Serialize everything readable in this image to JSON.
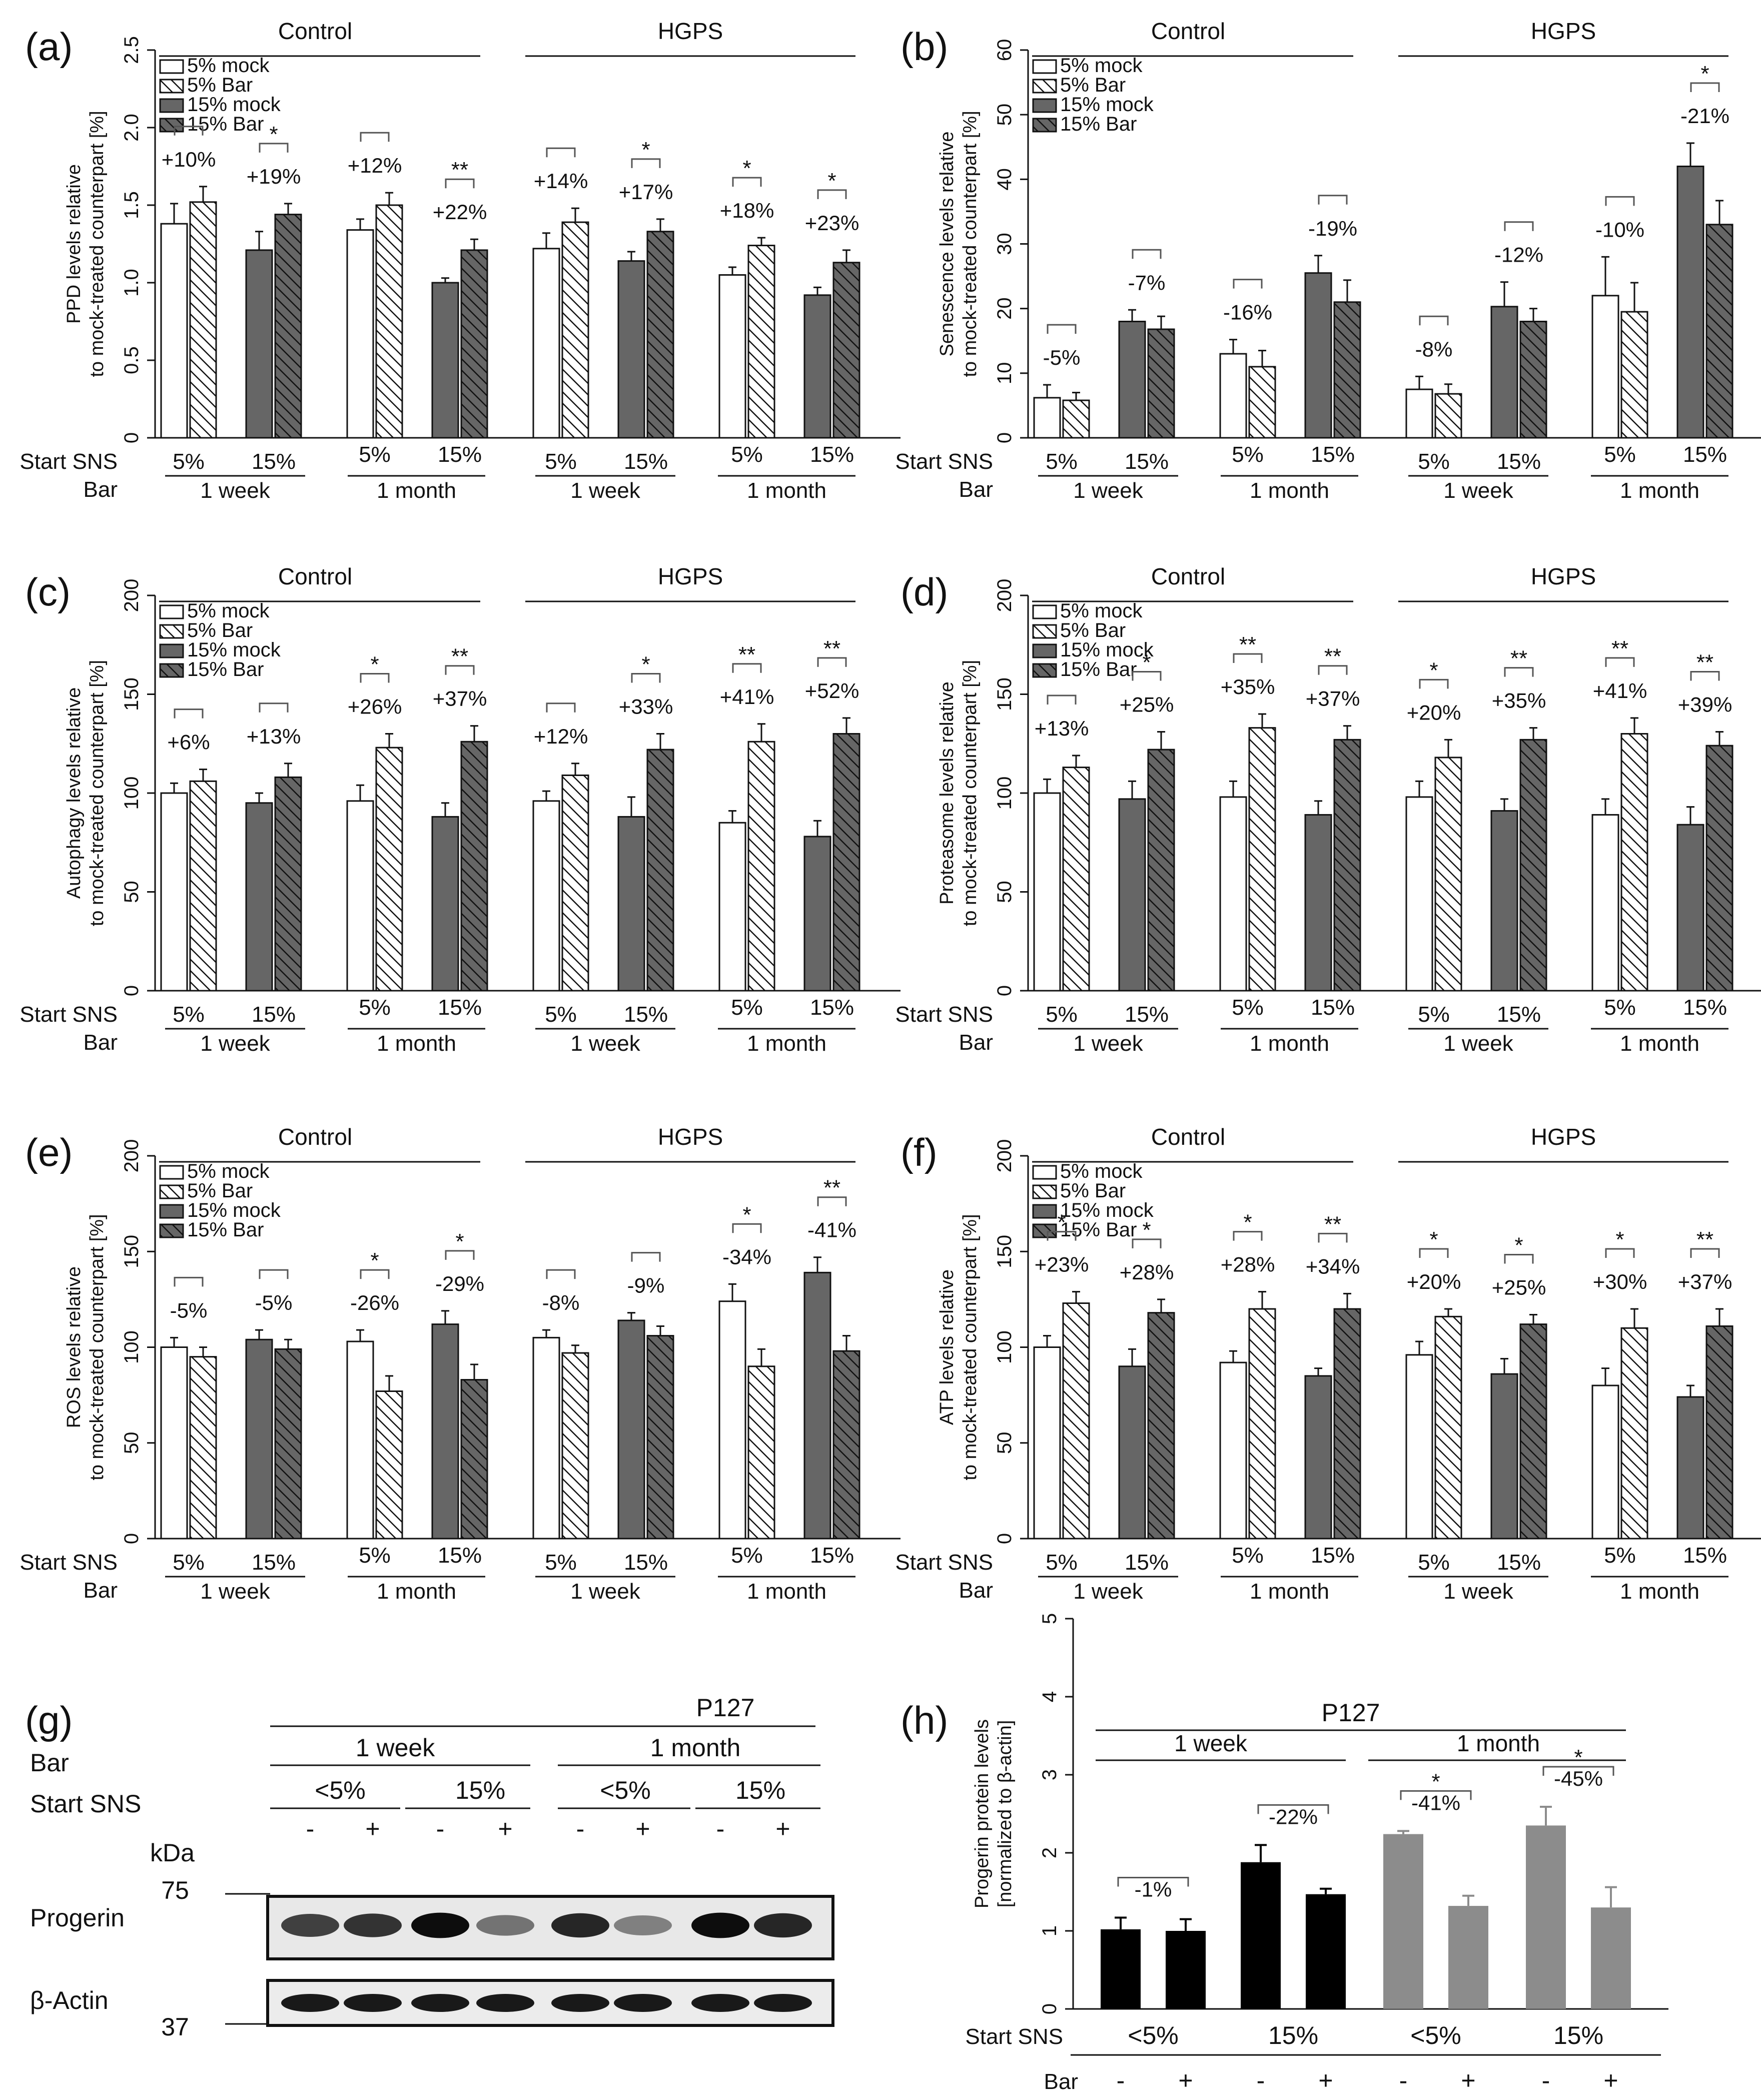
{
  "common": {
    "legend": [
      "5% mock",
      "5% Bar",
      "15% mock",
      "15% Bar"
    ],
    "group_headers": [
      "Control",
      "HGPS"
    ],
    "start_sns_label": "Start SNS",
    "bar_label": "Bar",
    "sns_ticks": [
      "5%",
      "15%",
      "5%",
      "15%",
      "5%",
      "15%",
      "5%",
      "15%"
    ],
    "duration_labels": [
      "1 week",
      "1 month",
      "1 week",
      "1 month"
    ]
  },
  "chart_data": [
    {
      "panel": "(a)",
      "type": "bar",
      "ylabel": [
        "PPD levels relative",
        "to mock-treated counterpart [%]"
      ],
      "ylim": [
        0,
        2.5
      ],
      "yticks": [
        "0",
        "0.5",
        "1.0",
        "1.5",
        "2.0",
        "2.5"
      ],
      "series": [
        "5% mock",
        "5% Bar",
        "15% mock",
        "15% Bar"
      ],
      "values": [
        [
          1.38,
          1.52
        ],
        [
          1.21,
          1.44
        ],
        [
          1.34,
          1.5
        ],
        [
          1.0,
          1.21
        ],
        [
          1.22,
          1.39
        ],
        [
          1.14,
          1.33
        ],
        [
          1.05,
          1.24
        ],
        [
          0.92,
          1.13
        ]
      ],
      "errors": [
        [
          0.13,
          0.1
        ],
        [
          0.12,
          0.07
        ],
        [
          0.07,
          0.08
        ],
        [
          0.03,
          0.07
        ],
        [
          0.1,
          0.09
        ],
        [
          0.06,
          0.08
        ],
        [
          0.05,
          0.05
        ],
        [
          0.05,
          0.08
        ]
      ],
      "annotations": [
        "+10%",
        "+19%",
        "+12%",
        "+22%",
        "+14%",
        "+17%",
        "+18%",
        "+23%"
      ],
      "stars": [
        "",
        "*",
        "",
        "**",
        "",
        "*",
        "*",
        "*"
      ]
    },
    {
      "panel": "(b)",
      "type": "bar",
      "ylabel": [
        "Senescence levels relative",
        "to mock-treated counterpart [%]"
      ],
      "ylim": [
        0,
        60
      ],
      "yticks": [
        "0",
        "10",
        "20",
        "30",
        "40",
        "50",
        "60"
      ],
      "series": [
        "5% mock",
        "5% Bar",
        "15% mock",
        "15% Bar"
      ],
      "values": [
        [
          6.2,
          5.8
        ],
        [
          18.0,
          16.8
        ],
        [
          13.0,
          11.0
        ],
        [
          25.5,
          21.0
        ],
        [
          7.5,
          6.8
        ],
        [
          20.3,
          18.0
        ],
        [
          22.0,
          19.5
        ],
        [
          42.0,
          33.0
        ]
      ],
      "errors": [
        [
          2.0,
          1.2
        ],
        [
          1.8,
          2.0
        ],
        [
          2.2,
          2.5
        ],
        [
          2.7,
          3.4
        ],
        [
          2.0,
          1.5
        ],
        [
          3.8,
          2.0
        ],
        [
          6.0,
          4.5
        ],
        [
          3.6,
          3.7
        ]
      ],
      "annotations": [
        "-5%",
        "-7%",
        "-16%",
        "-19%",
        "-8%",
        "-12%",
        "-10%",
        "-21%"
      ],
      "stars": [
        "",
        "",
        "",
        "",
        "",
        "",
        "",
        "*"
      ]
    },
    {
      "panel": "(c)",
      "type": "bar",
      "ylabel": [
        "Autophagy levels relative",
        "to mock-treated counterpart [%]"
      ],
      "ylim": [
        0,
        200
      ],
      "yticks": [
        "0",
        "50",
        "100",
        "150",
        "200"
      ],
      "series": [
        "5% mock",
        "5% Bar",
        "15% mock",
        "15% Bar"
      ],
      "values": [
        [
          100,
          106
        ],
        [
          95,
          108
        ],
        [
          96,
          123
        ],
        [
          88,
          126
        ],
        [
          96,
          109
        ],
        [
          88,
          122
        ],
        [
          85,
          126
        ],
        [
          78,
          130
        ]
      ],
      "errors": [
        [
          5,
          6
        ],
        [
          5,
          7
        ],
        [
          8,
          7
        ],
        [
          7,
          8
        ],
        [
          5,
          6
        ],
        [
          10,
          8
        ],
        [
          6,
          9
        ],
        [
          8,
          8
        ]
      ],
      "annotations": [
        "+6%",
        "+13%",
        "+26%",
        "+37%",
        "+12%",
        "+33%",
        "+41%",
        "+52%"
      ],
      "stars": [
        "",
        "",
        "*",
        "**",
        "",
        "*",
        "**",
        "**"
      ]
    },
    {
      "panel": "(d)",
      "type": "bar",
      "ylabel": [
        "Proteasome levels relative",
        "to mock-treated counterpart [%]"
      ],
      "ylim": [
        0,
        200
      ],
      "yticks": [
        "0",
        "50",
        "100",
        "150",
        "200"
      ],
      "series": [
        "5% mock",
        "5% Bar",
        "15% mock",
        "15% Bar"
      ],
      "values": [
        [
          100,
          113
        ],
        [
          97,
          122
        ],
        [
          98,
          133
        ],
        [
          89,
          127
        ],
        [
          98,
          118
        ],
        [
          91,
          127
        ],
        [
          89,
          130
        ],
        [
          84,
          124
        ]
      ],
      "errors": [
        [
          7,
          6
        ],
        [
          9,
          9
        ],
        [
          8,
          7
        ],
        [
          7,
          7
        ],
        [
          8,
          9
        ],
        [
          6,
          6
        ],
        [
          8,
          8
        ],
        [
          9,
          7
        ]
      ],
      "annotations": [
        "+13%",
        "+25%",
        "+35%",
        "+37%",
        "+20%",
        "+35%",
        "+41%",
        "+39%"
      ],
      "stars": [
        "",
        "*",
        "**",
        "**",
        "*",
        "**",
        "**",
        "**"
      ]
    },
    {
      "panel": "(e)",
      "type": "bar",
      "ylabel": [
        "ROS levels relative",
        "to mock-treated counterpart [%]"
      ],
      "ylim": [
        0,
        200
      ],
      "yticks": [
        "0",
        "50",
        "100",
        "150",
        "200"
      ],
      "series": [
        "5% mock",
        "5% Bar",
        "15% mock",
        "15% Bar"
      ],
      "values": [
        [
          100,
          95
        ],
        [
          104,
          99
        ],
        [
          103,
          77
        ],
        [
          112,
          83
        ],
        [
          105,
          97
        ],
        [
          114,
          106
        ],
        [
          124,
          90
        ],
        [
          139,
          98
        ]
      ],
      "errors": [
        [
          5,
          5
        ],
        [
          5,
          5
        ],
        [
          6,
          8
        ],
        [
          7,
          8
        ],
        [
          4,
          4
        ],
        [
          4,
          5
        ],
        [
          9,
          9
        ],
        [
          8,
          8
        ]
      ],
      "annotations": [
        "-5%",
        "-5%",
        "-26%",
        "-29%",
        "-8%",
        "-9%",
        "-34%",
        "-41%"
      ],
      "stars": [
        "",
        "",
        "*",
        "*",
        "",
        "",
        "*",
        "**"
      ]
    },
    {
      "panel": "(f)",
      "type": "bar",
      "ylabel": [
        "ATP levels relative",
        "to mock-treated counterpart [%]"
      ],
      "ylim": [
        0,
        200
      ],
      "yticks": [
        "0",
        "50",
        "100",
        "150",
        "200"
      ],
      "series": [
        "5% mock",
        "5% Bar",
        "15% mock",
        "15% Bar"
      ],
      "values": [
        [
          100,
          123
        ],
        [
          90,
          118
        ],
        [
          92,
          120
        ],
        [
          85,
          120
        ],
        [
          96,
          116
        ],
        [
          86,
          112
        ],
        [
          80,
          110
        ],
        [
          74,
          111
        ]
      ],
      "errors": [
        [
          6,
          6
        ],
        [
          9,
          7
        ],
        [
          6,
          9
        ],
        [
          4,
          8
        ],
        [
          7,
          4
        ],
        [
          8,
          5
        ],
        [
          9,
          10
        ],
        [
          6,
          9
        ]
      ],
      "annotations": [
        "+23%",
        "+28%",
        "+28%",
        "+34%",
        "+20%",
        "+25%",
        "+30%",
        "+37%"
      ],
      "stars": [
        "*",
        "*",
        "*",
        "**",
        "*",
        "*",
        "*",
        "**"
      ]
    },
    {
      "panel": "(h)",
      "type": "bar",
      "ylabel": [
        "Progerin protein levels",
        "[normalized to β-actin]"
      ],
      "ylim": [
        0,
        5
      ],
      "yticks": [
        "0",
        "1",
        "2",
        "3",
        "4",
        "5"
      ],
      "top_label": "P127",
      "durations": [
        "1 week",
        "1 month"
      ],
      "groups": [
        "<5%",
        "15%",
        "<5%",
        "15%"
      ],
      "bar_signs": [
        "-",
        "+"
      ],
      "values": [
        [
          1.02,
          1.0
        ],
        [
          1.88,
          1.47
        ],
        [
          2.24,
          1.32
        ],
        [
          2.35,
          1.3
        ]
      ],
      "errors": [
        [
          0.15,
          0.15
        ],
        [
          0.22,
          0.07
        ],
        [
          0.04,
          0.13
        ],
        [
          0.24,
          0.26
        ]
      ],
      "colors": [
        "#000000",
        "#000000",
        "#8c8c8c",
        "#8c8c8c"
      ],
      "annotations": [
        "-1%",
        "-22%",
        "-41%",
        "-45%"
      ],
      "stars": [
        "",
        "",
        "*",
        "*"
      ]
    }
  ],
  "blot": {
    "panel": "(g)",
    "top_label": "P127",
    "bar_label": "Bar",
    "start_sns_label": "Start SNS",
    "durations": [
      "1 week",
      "1 month"
    ],
    "sns": [
      "<5%",
      "15%",
      "<5%",
      "15%"
    ],
    "signs": [
      "-",
      "+",
      "-",
      "+",
      "-",
      "+",
      "-",
      "+"
    ],
    "kda_label": "kDa",
    "marker_high": "75",
    "marker_low": "37",
    "row_labels": [
      "Progerin",
      "β-Actin"
    ],
    "progerin_intensity": [
      0.75,
      0.8,
      0.95,
      0.55,
      0.85,
      0.5,
      0.95,
      0.85
    ],
    "actin_intensity": [
      0.9,
      0.9,
      0.9,
      0.9,
      0.9,
      0.9,
      0.9,
      0.9
    ]
  }
}
